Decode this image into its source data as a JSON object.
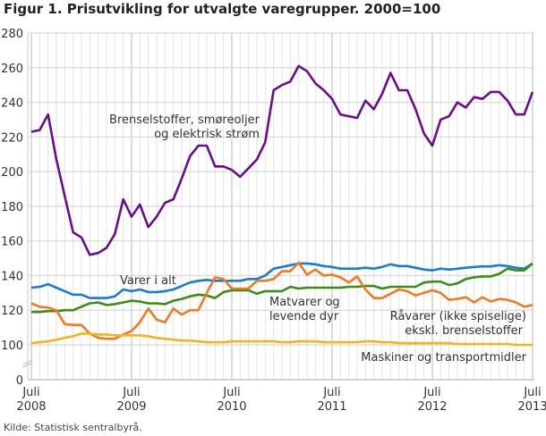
{
  "title": "Figur 1. Prisutvikling for utvalgte varegrupper. 2000=100",
  "source": "Kilde: Statistisk sentralbyrå.",
  "chart_data": {
    "type": "line",
    "title": "Figur 1. Prisutvikling for utvalgte varegrupper. 2000=100",
    "xlabel": "",
    "ylabel": "",
    "ylim": [
      0,
      280
    ],
    "axis_break": "between 0 and 100",
    "yticks": [
      "0",
      "100",
      "120",
      "140",
      "160",
      "180",
      "200",
      "220",
      "240",
      "260",
      "280"
    ],
    "xticks": [
      {
        "month": "Juli",
        "year": "2008",
        "x": "2008-07"
      },
      {
        "month": "Juli",
        "year": "2009",
        "x": "2009-07"
      },
      {
        "month": "Juli",
        "year": "2010",
        "x": "2010-07"
      },
      {
        "month": "Juli",
        "year": "2011",
        "x": "2011-07"
      },
      {
        "month": "Juli",
        "year": "2012",
        "x": "2012-07"
      },
      {
        "month": "Juli",
        "year": "2013",
        "x": "2013-07"
      }
    ],
    "grid": true,
    "x": [
      "2008-07",
      "2008-08",
      "2008-09",
      "2008-10",
      "2008-11",
      "2008-12",
      "2009-01",
      "2009-02",
      "2009-03",
      "2009-04",
      "2009-05",
      "2009-06",
      "2009-07",
      "2009-08",
      "2009-09",
      "2009-10",
      "2009-11",
      "2009-12",
      "2010-01",
      "2010-02",
      "2010-03",
      "2010-04",
      "2010-05",
      "2010-06",
      "2010-07",
      "2010-08",
      "2010-09",
      "2010-10",
      "2010-11",
      "2010-12",
      "2011-01",
      "2011-02",
      "2011-03",
      "2011-04",
      "2011-05",
      "2011-06",
      "2011-07",
      "2011-08",
      "2011-09",
      "2011-10",
      "2011-11",
      "2011-12",
      "2012-01",
      "2012-02",
      "2012-03",
      "2012-04",
      "2012-05",
      "2012-06",
      "2012-07",
      "2012-08",
      "2012-09",
      "2012-10",
      "2012-11",
      "2012-12",
      "2013-01",
      "2013-02",
      "2013-03",
      "2013-04",
      "2013-05",
      "2013-06",
      "2013-07"
    ],
    "series": [
      {
        "name": "Brenselstoffer, smøreoljer og elektrisk strøm",
        "label_lines": [
          "Brenselstoffer, smøreoljer",
          "og elektrisk strøm"
        ],
        "color": "#6a0d8c",
        "values": [
          223,
          224,
          233,
          207,
          186,
          165,
          162,
          152,
          153,
          156,
          164,
          184,
          174,
          181,
          168,
          174,
          182,
          184,
          196,
          209,
          215,
          215,
          203,
          203,
          201,
          197,
          202,
          207,
          217,
          247,
          250,
          252,
          261,
          258,
          251,
          247,
          242,
          233,
          232,
          231,
          241,
          236,
          245,
          257,
          247,
          247,
          236,
          222,
          215,
          230,
          232,
          240,
          237,
          243,
          242,
          246,
          246,
          241,
          233,
          233,
          246
        ]
      },
      {
        "name": "Varer i alt",
        "label_lines": [
          "Varer i alt"
        ],
        "color": "#1a7bd6",
        "values": [
          133,
          133.5,
          135,
          133,
          131,
          129,
          129,
          127,
          127,
          127,
          128,
          132,
          131,
          132,
          130.5,
          130.5,
          131,
          132,
          134,
          136,
          137,
          137.5,
          137,
          137,
          137,
          137,
          138,
          138,
          140,
          144,
          145,
          146,
          147,
          147,
          146.5,
          145.5,
          145,
          144,
          144,
          144,
          144.5,
          144,
          145,
          146.5,
          145.5,
          145.5,
          144.5,
          143.5,
          143,
          144,
          143.5,
          144,
          144.5,
          145,
          145.3,
          145.3,
          146,
          145.5,
          144.5,
          144,
          147
        ]
      },
      {
        "name": "Matvarer og levende dyr",
        "label_lines": [
          "Matvarer og",
          "levende dyr"
        ],
        "color": "#3d8c15",
        "values": [
          119,
          119,
          119.5,
          119.5,
          120,
          120,
          122,
          124,
          124.5,
          123,
          123.5,
          124.5,
          125.5,
          125,
          124,
          124,
          123.5,
          125.5,
          126.5,
          128,
          129,
          128.5,
          127,
          130.5,
          131.5,
          131.5,
          131.5,
          129.5,
          131,
          131,
          131,
          133.5,
          132.5,
          133,
          133,
          133,
          133,
          133,
          133.5,
          133.5,
          134,
          134,
          132.5,
          133.5,
          133.5,
          133.5,
          133.5,
          136,
          136.5,
          136.5,
          134.5,
          135.5,
          138,
          139,
          139.5,
          139.5,
          141,
          144,
          143,
          143,
          147
        ]
      },
      {
        "name": "Råvarer (ikke spiselige) ekskl. brenselstoffer",
        "label_lines": [
          "Råvarer (ikke spiselige)",
          "ekskl. brenselstoffer"
        ],
        "color": "#f07a22",
        "values": [
          124,
          122,
          121.5,
          120,
          112,
          111.5,
          111.5,
          106.5,
          104,
          103.5,
          103.5,
          106,
          108,
          113,
          121,
          114.5,
          113,
          121,
          117.5,
          120,
          120,
          130,
          139,
          138,
          132.5,
          132.5,
          132.5,
          137,
          137,
          138,
          142.5,
          142.5,
          147.5,
          140.5,
          143.5,
          140,
          140.5,
          139,
          136,
          139.5,
          132,
          127,
          127,
          129.5,
          132,
          131,
          128.5,
          130,
          131.5,
          130,
          126,
          126.5,
          127.5,
          124.5,
          127.5,
          125,
          126.5,
          126,
          124.5,
          122,
          123
        ]
      },
      {
        "name": "Maskiner og transportmidler",
        "label_lines": [
          "Maskiner og transportmidler"
        ],
        "color": "#f2b51e",
        "values": [
          101,
          101.5,
          102,
          103,
          104,
          105,
          106.5,
          106.5,
          106,
          106,
          105.5,
          105.5,
          105.5,
          105.5,
          105,
          104,
          103.5,
          103,
          102.5,
          102.5,
          102,
          101.5,
          101.5,
          101.5,
          102,
          102,
          102,
          102,
          102,
          102,
          101.5,
          101.5,
          102,
          102,
          102,
          101.5,
          101.5,
          101.5,
          101.5,
          101.5,
          102,
          102,
          101.5,
          101.5,
          101,
          101,
          101,
          101,
          101,
          101,
          101,
          100.5,
          100.5,
          100.5,
          100.5,
          100.5,
          100.5,
          100.5,
          100,
          100,
          100
        ]
      }
    ]
  }
}
